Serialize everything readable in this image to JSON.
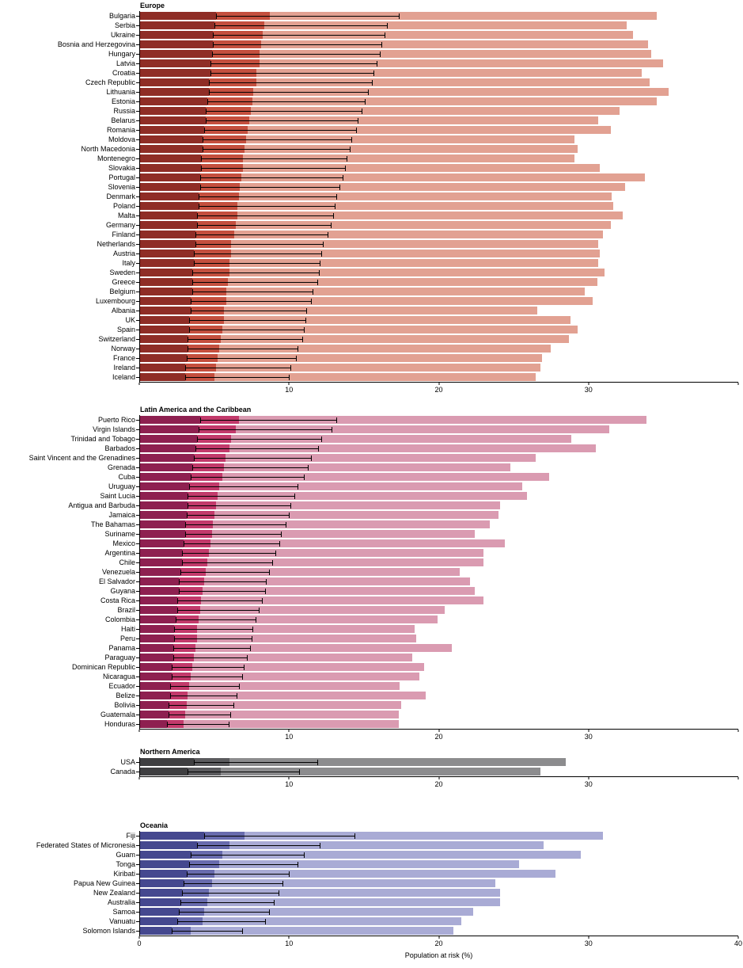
{
  "chart_data": {
    "type": "bar",
    "orientation": "horizontal",
    "xlabel": "Population at risk (%)",
    "xlim": [
      0,
      40
    ],
    "xticks": [
      0,
      10,
      20,
      30,
      40
    ],
    "grid": false,
    "legend": "none",
    "row_format": [
      "label",
      "dark_bar_and_ci_low",
      "mid_bar",
      "ci_high",
      "light_bar"
    ],
    "whisker_color": "#000000",
    "sections": [
      {
        "title": "Europe",
        "colors": {
          "dark": "#8F2D26",
          "mid": "#C44F3E",
          "light": "#E2A192"
        },
        "tick_labels": [
          10,
          20,
          30
        ],
        "rows": [
          [
            "Bulgaria",
            5.1,
            8.7,
            17.4,
            34.6
          ],
          [
            "Serbia",
            5.0,
            8.3,
            16.6,
            32.6
          ],
          [
            "Ukraine",
            4.9,
            8.2,
            16.4,
            33.0
          ],
          [
            "Bosnia and Herzegovina",
            4.9,
            8.1,
            16.2,
            34.0
          ],
          [
            "Hungary",
            4.8,
            8.0,
            16.1,
            34.2
          ],
          [
            "Latvia",
            4.7,
            8.0,
            15.9,
            35.0
          ],
          [
            "Croatia",
            4.7,
            7.8,
            15.7,
            33.6
          ],
          [
            "Czech Republic",
            4.6,
            7.8,
            15.6,
            34.1
          ],
          [
            "Lithuania",
            4.6,
            7.6,
            15.3,
            35.4
          ],
          [
            "Estonia",
            4.5,
            7.5,
            15.1,
            34.6
          ],
          [
            "Russia",
            4.4,
            7.4,
            14.9,
            32.1
          ],
          [
            "Belarus",
            4.4,
            7.3,
            14.6,
            30.7
          ],
          [
            "Romania",
            4.3,
            7.2,
            14.5,
            31.5
          ],
          [
            "Moldova",
            4.2,
            7.1,
            14.2,
            29.1
          ],
          [
            "North Macedonia",
            4.2,
            7.0,
            14.1,
            29.3
          ],
          [
            "Montenegro",
            4.1,
            6.9,
            13.9,
            29.1
          ],
          [
            "Slovakia",
            4.1,
            6.9,
            13.8,
            30.8
          ],
          [
            "Portugal",
            4.0,
            6.8,
            13.6,
            33.8
          ],
          [
            "Slovenia",
            4.0,
            6.7,
            13.4,
            32.5
          ],
          [
            "Denmark",
            3.9,
            6.6,
            13.2,
            31.6
          ],
          [
            "Poland",
            3.9,
            6.5,
            13.1,
            31.7
          ],
          [
            "Malta",
            3.8,
            6.5,
            13.0,
            32.3
          ],
          [
            "Germany",
            3.8,
            6.4,
            12.8,
            31.5
          ],
          [
            "Finland",
            3.7,
            6.3,
            12.6,
            31.0
          ],
          [
            "Netherlands",
            3.7,
            6.1,
            12.3,
            30.7
          ],
          [
            "Austria",
            3.6,
            6.1,
            12.2,
            30.8
          ],
          [
            "Italy",
            3.6,
            6.0,
            12.1,
            30.7
          ],
          [
            "Sweden",
            3.5,
            6.0,
            12.0,
            31.1
          ],
          [
            "Greece",
            3.5,
            5.9,
            11.9,
            30.6
          ],
          [
            "Belgium",
            3.5,
            5.8,
            11.6,
            29.8
          ],
          [
            "Luxembourg",
            3.4,
            5.8,
            11.5,
            30.3
          ],
          [
            "Albania",
            3.4,
            5.6,
            11.2,
            26.6
          ],
          [
            "UK",
            3.3,
            5.6,
            11.1,
            28.8
          ],
          [
            "Spain",
            3.3,
            5.5,
            11.0,
            29.3
          ],
          [
            "Switzerland",
            3.2,
            5.4,
            10.9,
            28.7
          ],
          [
            "Norway",
            3.2,
            5.3,
            10.6,
            27.5
          ],
          [
            "France",
            3.1,
            5.2,
            10.5,
            26.9
          ],
          [
            "Ireland",
            3.0,
            5.1,
            10.1,
            26.8
          ],
          [
            "Iceland",
            3.0,
            5.0,
            10.0,
            26.5
          ]
        ]
      },
      {
        "title": "Latin America and the Caribbean",
        "colors": {
          "dark": "#8E2050",
          "mid": "#C23A6B",
          "light": "#DA9BB1"
        },
        "tick_labels": [
          10,
          20,
          30
        ],
        "rows": [
          [
            "Puerto Rico",
            4.0,
            6.6,
            13.2,
            33.9
          ],
          [
            "Virgin Islands",
            3.9,
            6.4,
            12.9,
            31.4
          ],
          [
            "Trinidad and Tobago",
            3.8,
            6.1,
            12.2,
            28.9
          ],
          [
            "Barbados",
            3.7,
            6.0,
            12.0,
            30.5
          ],
          [
            "Saint Vincent and the Grenadines",
            3.6,
            5.7,
            11.5,
            26.5
          ],
          [
            "Grenada",
            3.5,
            5.6,
            11.3,
            24.8
          ],
          [
            "Cuba",
            3.4,
            5.5,
            11.0,
            27.4
          ],
          [
            "Uruguay",
            3.3,
            5.3,
            10.6,
            25.6
          ],
          [
            "Saint Lucia",
            3.2,
            5.2,
            10.4,
            25.9
          ],
          [
            "Antigua and Barbuda",
            3.2,
            5.1,
            10.1,
            24.1
          ],
          [
            "Jamaica",
            3.1,
            5.0,
            10.0,
            24.0
          ],
          [
            "The Bahamas",
            3.0,
            4.9,
            9.8,
            23.4
          ],
          [
            "Suriname",
            3.0,
            4.8,
            9.5,
            22.4
          ],
          [
            "Mexico",
            2.9,
            4.7,
            9.4,
            24.4
          ],
          [
            "Argentina",
            2.8,
            4.6,
            9.1,
            23.0
          ],
          [
            "Chile",
            2.8,
            4.5,
            8.9,
            23.0
          ],
          [
            "Venezuela",
            2.7,
            4.4,
            8.7,
            21.4
          ],
          [
            "El Salvador",
            2.6,
            4.3,
            8.5,
            22.1
          ],
          [
            "Guyana",
            2.6,
            4.2,
            8.4,
            22.4
          ],
          [
            "Costa Rica",
            2.5,
            4.1,
            8.2,
            23.0
          ],
          [
            "Brazil",
            2.5,
            4.0,
            8.0,
            20.4
          ],
          [
            "Colombia",
            2.4,
            3.9,
            7.8,
            19.9
          ],
          [
            "Haiti",
            2.3,
            3.8,
            7.6,
            18.4
          ],
          [
            "Peru",
            2.3,
            3.8,
            7.5,
            18.5
          ],
          [
            "Panama",
            2.2,
            3.7,
            7.4,
            20.9
          ],
          [
            "Paraguay",
            2.2,
            3.6,
            7.2,
            18.2
          ],
          [
            "Dominican Republic",
            2.1,
            3.5,
            7.0,
            19.0
          ],
          [
            "Nicaragua",
            2.1,
            3.4,
            6.9,
            18.7
          ],
          [
            "Ecuador",
            2.0,
            3.3,
            6.7,
            17.4
          ],
          [
            "Belize",
            2.0,
            3.2,
            6.5,
            19.1
          ],
          [
            "Bolivia",
            1.9,
            3.1,
            6.3,
            17.5
          ],
          [
            "Guatemala",
            1.9,
            3.0,
            6.1,
            17.3
          ],
          [
            "Honduras",
            1.8,
            2.9,
            6.0,
            17.3
          ]
        ]
      },
      {
        "title": "Northern America",
        "colors": {
          "dark": "#3F3F41",
          "mid": "#5B5B5E",
          "light": "#8C8C8E"
        },
        "tick_labels": [
          10,
          20,
          30
        ],
        "rows": [
          [
            "USA",
            3.6,
            6.0,
            11.9,
            28.5
          ],
          [
            "Canada",
            3.2,
            5.4,
            10.7,
            26.8
          ]
        ]
      },
      {
        "title": "Oceania",
        "colors": {
          "dark": "#45488F",
          "mid": "#686BAD",
          "light": "#A9ABD5"
        },
        "tick_labels": [
          0,
          10,
          20,
          30,
          40
        ],
        "show_axis_title": true,
        "rows": [
          [
            "Fiji",
            4.3,
            7.0,
            14.4,
            31.0
          ],
          [
            "Federated States of Micronesia",
            3.8,
            6.0,
            12.1,
            27.0
          ],
          [
            "Guam",
            3.4,
            5.5,
            11.0,
            29.5
          ],
          [
            "Tonga",
            3.3,
            5.3,
            10.6,
            25.4
          ],
          [
            "Kiribati",
            3.1,
            5.0,
            10.0,
            27.8
          ],
          [
            "Papua New Guinea",
            2.9,
            4.8,
            9.6,
            23.8
          ],
          [
            "New Zealand",
            2.8,
            4.6,
            9.3,
            24.1
          ],
          [
            "Australia",
            2.7,
            4.5,
            9.0,
            24.1
          ],
          [
            "Samoa",
            2.6,
            4.3,
            8.7,
            22.3
          ],
          [
            "Vanuatu",
            2.5,
            4.2,
            8.4,
            21.5
          ],
          [
            "Solomon Islands",
            2.1,
            3.4,
            6.9,
            21.0
          ]
        ]
      }
    ]
  }
}
